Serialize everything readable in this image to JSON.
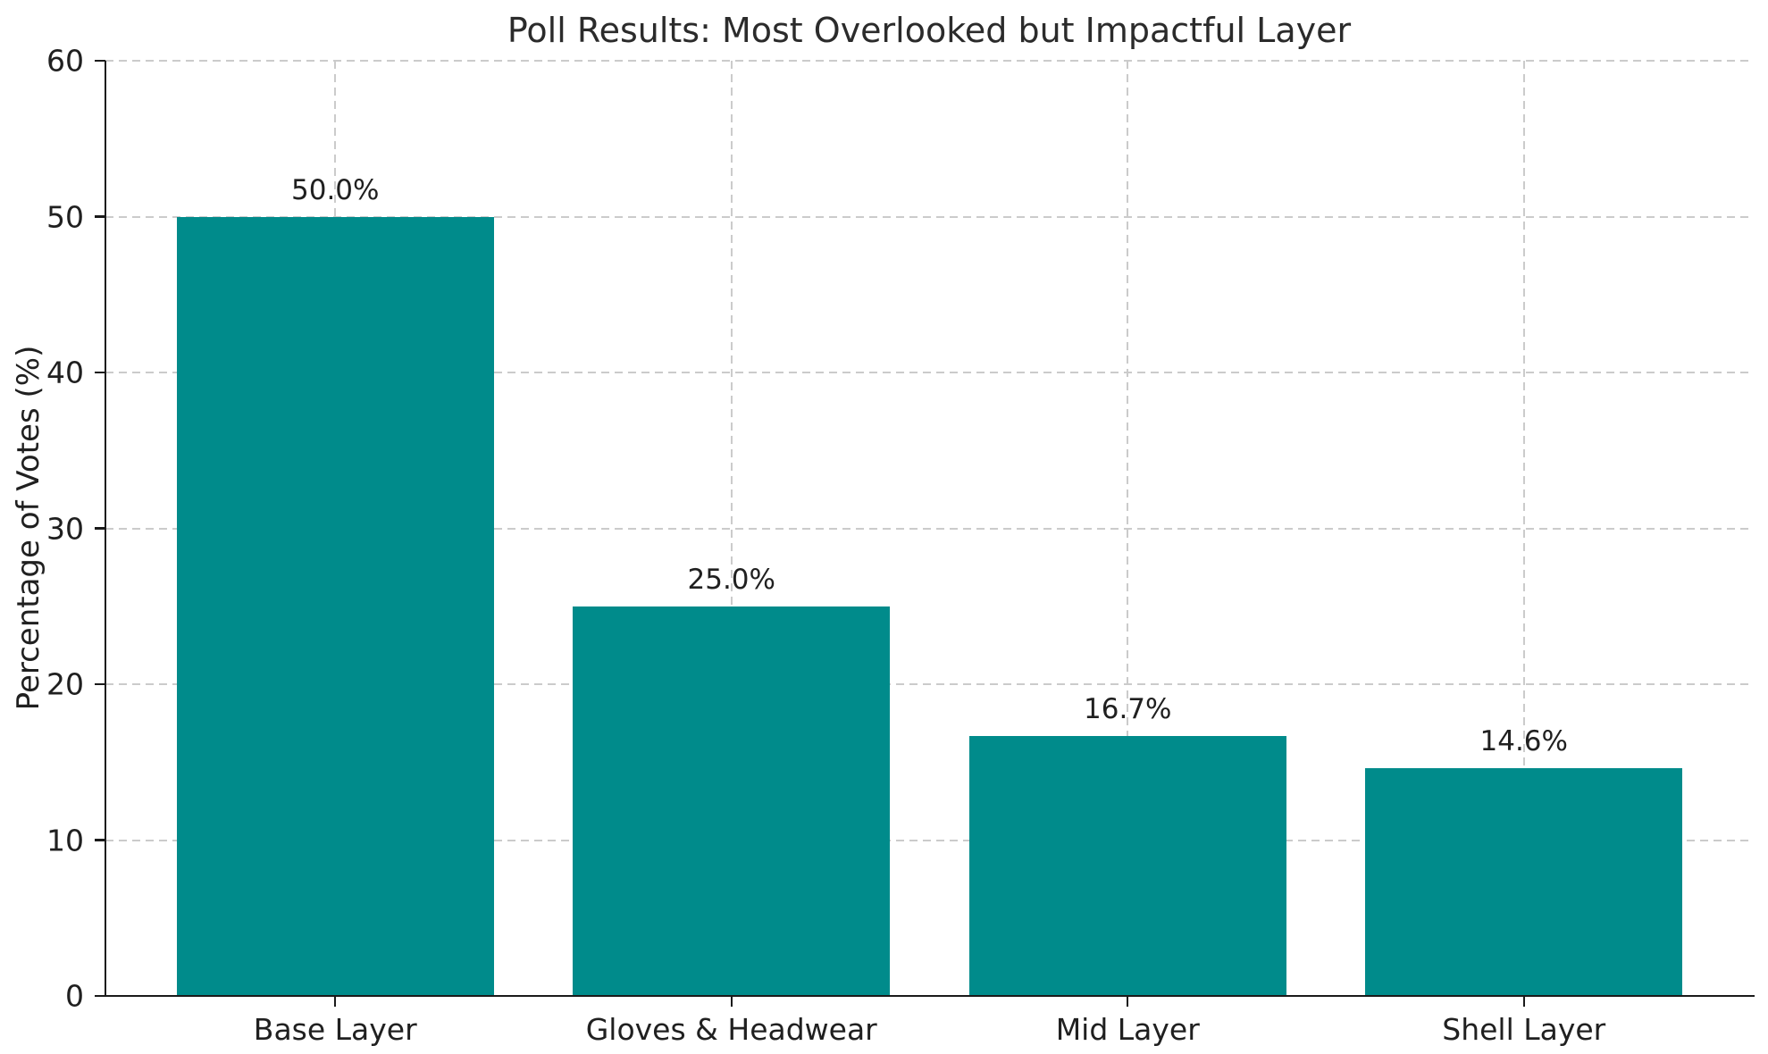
{
  "chart_data": {
    "type": "bar",
    "title": "Poll Results: Most Overlooked but Impactful Layer",
    "ylabel": "Percentage of Votes (%)",
    "xlabel": "",
    "categories": [
      "Base Layer",
      "Gloves & Headwear",
      "Mid Layer",
      "Shell Layer"
    ],
    "values": [
      50.0,
      25.0,
      16.7,
      14.6
    ],
    "bar_labels": [
      "50.0%",
      "25.0%",
      "16.7%",
      "14.6%"
    ],
    "ylim": [
      0,
      60
    ],
    "yticks": [
      0,
      10,
      20,
      30,
      40,
      50,
      60
    ],
    "ytick_labels": [
      "0",
      "10",
      "20",
      "30",
      "40",
      "50",
      "60"
    ],
    "bar_color": "#008b8b",
    "grid": "dashed",
    "grid_color": "#cbcbcb",
    "axis_color": "#1a1a1a",
    "text_color": "#202020",
    "legend_position": "none"
  }
}
